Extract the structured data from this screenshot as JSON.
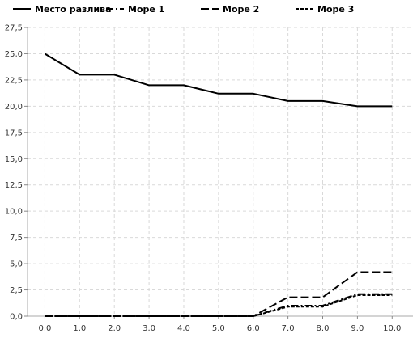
{
  "chart_data": {
    "type": "line",
    "title": "",
    "xlabel": "",
    "ylabel": "",
    "x": [
      0.0,
      1.0,
      2.0,
      3.0,
      4.0,
      5.0,
      6.0,
      7.0,
      8.0,
      9.0,
      10.0
    ],
    "x_tick_labels": [
      "0.0",
      "1.0",
      "2.0",
      "3.0",
      "4.0",
      "5.0",
      "6.0",
      "7.0",
      "8.0",
      "9.0",
      "10.0"
    ],
    "y_ticks": [
      0,
      2.5,
      5,
      7.5,
      10,
      12.5,
      15,
      17.5,
      20,
      22.5,
      25,
      27.5
    ],
    "y_tick_labels": [
      "0,0",
      "2,5",
      "5,0",
      "7,5",
      "10,0",
      "12,5",
      "15,0",
      "17,5",
      "20,0",
      "22,5",
      "25,0",
      "27,5"
    ],
    "xlim": [
      -0.5,
      10.6
    ],
    "ylim": [
      0,
      27.5
    ],
    "grid": true,
    "legend_position": "top",
    "series": [
      {
        "name": "Место разлива",
        "dash": "solid",
        "values": [
          25.0,
          23.0,
          23.0,
          22.0,
          22.0,
          21.2,
          21.2,
          20.5,
          20.5,
          20.0,
          20.0
        ]
      },
      {
        "name": "Море 1",
        "dash": "dash-dot",
        "values": [
          0,
          0,
          0,
          0,
          0,
          0,
          0,
          1.0,
          1.0,
          2.1,
          2.1
        ]
      },
      {
        "name": "Море 2",
        "dash": "long-dash",
        "values": [
          0,
          0,
          0,
          0,
          0,
          0,
          0,
          1.8,
          1.8,
          4.2,
          4.2
        ]
      },
      {
        "name": "Море 3",
        "dash": "short-dash",
        "values": [
          0,
          0,
          0,
          0,
          0,
          0,
          0,
          0.9,
          0.9,
          2.0,
          2.0
        ]
      }
    ]
  }
}
